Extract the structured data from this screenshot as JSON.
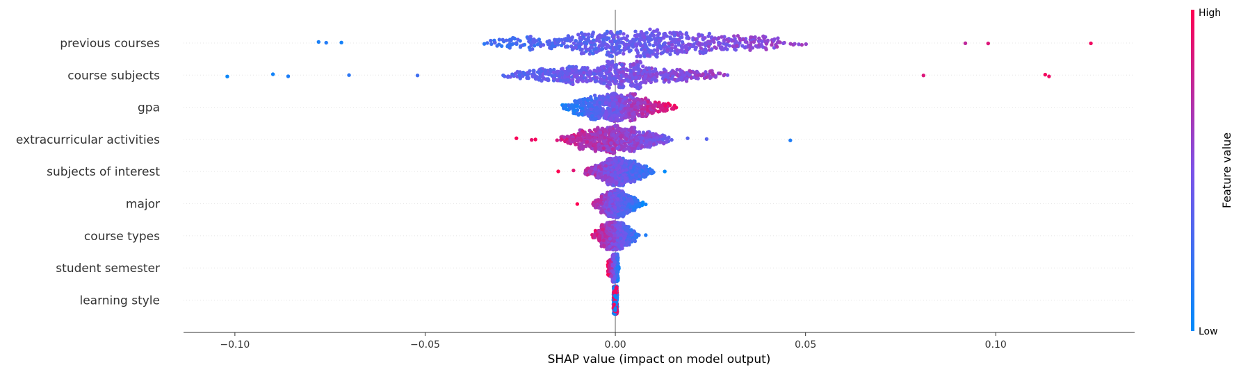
{
  "chart_data": {
    "type": "scatter",
    "subtype": "beeswarm",
    "title": "",
    "xlabel": "SHAP value (impact on model output)",
    "ylabel": "",
    "xlim": [
      -0.1135,
      0.1365
    ],
    "xticks": [
      -0.1,
      -0.05,
      0.0,
      0.05,
      0.1
    ],
    "xtick_labels": [
      "−0.10",
      "−0.05",
      "0.00",
      "0.05",
      "0.10"
    ],
    "grid": "horizontal dotted per feature",
    "colorbar": {
      "label": "Feature value",
      "high_label": "High",
      "low_label": "Low",
      "low_color": "#008bfb",
      "high_color": "#ff0051"
    },
    "features": [
      {
        "name": "previous courses",
        "min": -0.078,
        "max": 0.125,
        "core": [
          -0.035,
          0.05
        ],
        "spread": 0.085,
        "hi_side": "positive",
        "outliers": [
          0.125,
          0.098,
          0.092,
          -0.078,
          -0.076,
          -0.072
        ]
      },
      {
        "name": "course subjects",
        "min": -0.102,
        "max": 0.114,
        "core": [
          -0.03,
          0.03
        ],
        "spread": 0.09,
        "hi_side": "positive",
        "outliers": [
          -0.102,
          -0.09,
          -0.086,
          -0.07,
          -0.052,
          0.081,
          0.113,
          0.114
        ]
      },
      {
        "name": "gpa",
        "min": -0.015,
        "max": 0.016,
        "core": [
          -0.015,
          0.016
        ],
        "spread": 0.3,
        "hi_side": "positive",
        "outliers": []
      },
      {
        "name": "extracurricular activities",
        "min": -0.026,
        "max": 0.046,
        "core": [
          -0.015,
          0.015
        ],
        "spread": 0.35,
        "hi_side": "negative",
        "outliers": [
          -0.026,
          -0.022,
          -0.021,
          0.019,
          0.024,
          0.046
        ]
      },
      {
        "name": "subjects of interest",
        "min": -0.015,
        "max": 0.013,
        "core": [
          -0.008,
          0.01
        ],
        "spread": 0.3,
        "hi_side": "negative",
        "outliers": [
          -0.015,
          -0.011,
          0.013
        ]
      },
      {
        "name": "major",
        "min": -0.01,
        "max": 0.008,
        "core": [
          -0.006,
          0.007
        ],
        "spread": 0.22,
        "hi_side": "negative",
        "outliers": [
          -0.01,
          0.008
        ]
      },
      {
        "name": "course types",
        "min": -0.007,
        "max": 0.008,
        "core": [
          -0.006,
          0.006
        ],
        "spread": 0.25,
        "hi_side": "negative",
        "outliers": [
          0.008
        ]
      },
      {
        "name": "student semester",
        "min": -0.002,
        "max": 0.001,
        "core": [
          -0.002,
          0.001
        ],
        "spread": 0.35,
        "hi_side": "negative",
        "outliers": []
      },
      {
        "name": "learning style",
        "min": -0.0005,
        "max": 0.0005,
        "core": [
          -0.0005,
          0.0005
        ],
        "spread": 0.35,
        "hi_side": "mixed",
        "outliers": []
      }
    ]
  }
}
